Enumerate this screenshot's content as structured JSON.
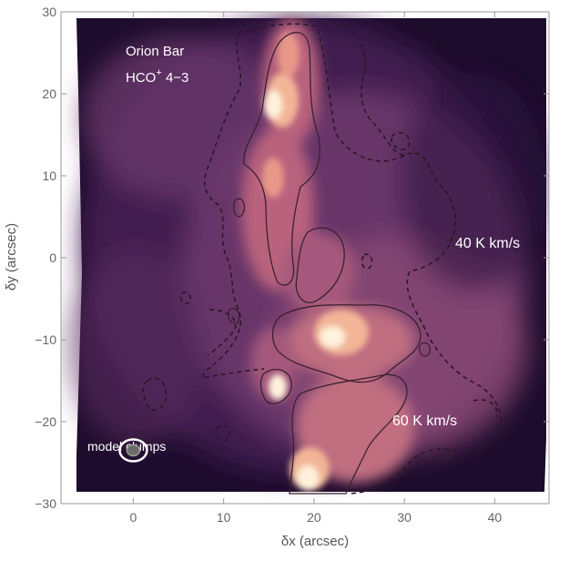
{
  "chart_data": {
    "type": "heatmap",
    "title": "",
    "xlabel": "δx (arcsec)",
    "ylabel": "δy (arcsec)",
    "xlim": [
      -8,
      46
    ],
    "ylim": [
      -30,
      30
    ],
    "x_ticks": [
      0,
      10,
      20,
      30,
      40
    ],
    "y_ticks": [
      -30,
      -20,
      -10,
      0,
      10,
      20,
      30
    ],
    "x_tick_labels": [
      "0",
      "10",
      "20",
      "30",
      "40"
    ],
    "y_tick_labels": [
      "−30",
      "−20",
      "−10",
      "0",
      "10",
      "20",
      "30"
    ],
    "grid": false,
    "colormap": [
      "#1b0c2b",
      "#3f1d4f",
      "#6e3a6d",
      "#a5587c",
      "#d47e82",
      "#f2b596",
      "#fff2dc"
    ],
    "contours": [
      {
        "label": "40 K km/s",
        "level": 40,
        "style": "dashed"
      },
      {
        "label": "60 K km/s",
        "level": 60,
        "style": "solid"
      }
    ],
    "annotations": {
      "title_line1": "Orion Bar",
      "title_line2_prefix": "HCO",
      "title_line2_sup": "+",
      "title_line2_suffix": " 4−3",
      "contour_label_40": "40 K km/s",
      "contour_label_60": "60 K km/s",
      "clumps_label": "model clumps"
    },
    "model_clump_beam": {
      "x": 0,
      "y": -23.5
    }
  }
}
